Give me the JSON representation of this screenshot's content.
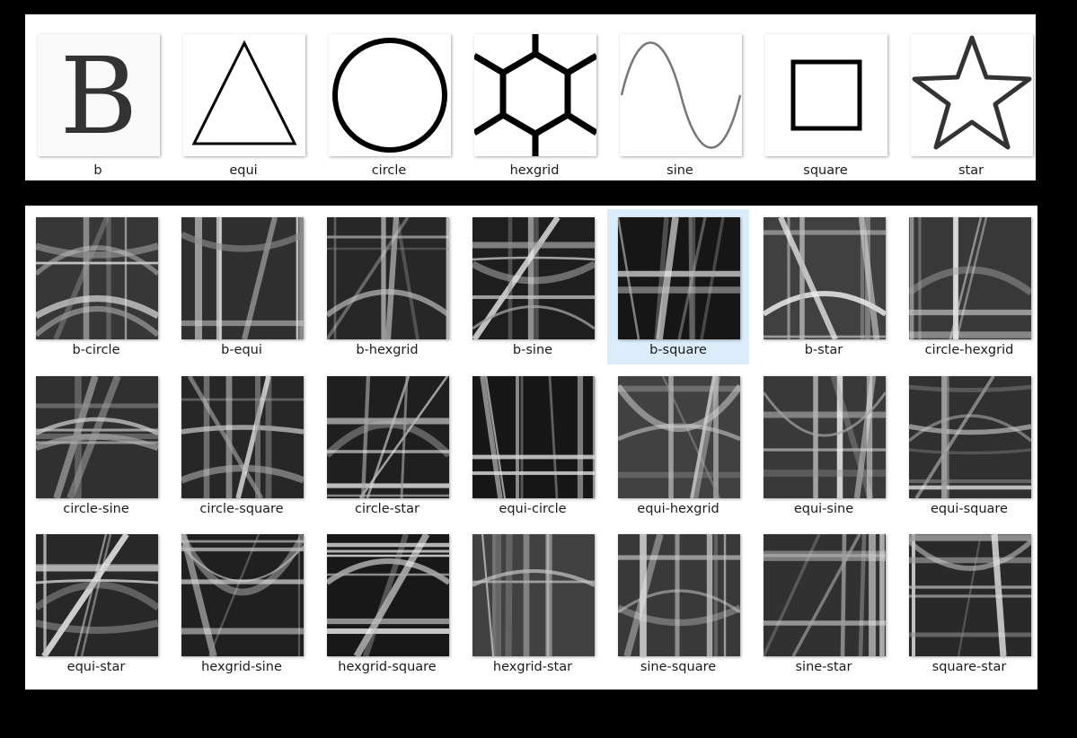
{
  "shapes": [
    {
      "label": "b",
      "icon": "letter-b-icon"
    },
    {
      "label": "equi",
      "icon": "triangle-icon"
    },
    {
      "label": "circle",
      "icon": "circle-icon"
    },
    {
      "label": "hexgrid",
      "icon": "hexgrid-icon"
    },
    {
      "label": "sine",
      "icon": "sine-wave-icon"
    },
    {
      "label": "square",
      "icon": "square-icon"
    },
    {
      "label": "star",
      "icon": "star-icon"
    }
  ],
  "combos": [
    {
      "label": "b-circle"
    },
    {
      "label": "b-equi"
    },
    {
      "label": "b-hexgrid"
    },
    {
      "label": "b-sine"
    },
    {
      "label": "b-square",
      "selected": true
    },
    {
      "label": "b-star"
    },
    {
      "label": "circle-hexgrid"
    },
    {
      "label": "circle-sine"
    },
    {
      "label": "circle-square"
    },
    {
      "label": "circle-star"
    },
    {
      "label": "equi-circle"
    },
    {
      "label": "equi-hexgrid"
    },
    {
      "label": "equi-sine"
    },
    {
      "label": "equi-square"
    },
    {
      "label": "equi-star"
    },
    {
      "label": "hexgrid-sine"
    },
    {
      "label": "hexgrid-square"
    },
    {
      "label": "hexgrid-star"
    },
    {
      "label": "sine-square"
    },
    {
      "label": "sine-star"
    },
    {
      "label": "square-star"
    }
  ],
  "colors": {
    "selection": "#dcecfb",
    "background": "#000000",
    "panel": "#ffffff"
  }
}
